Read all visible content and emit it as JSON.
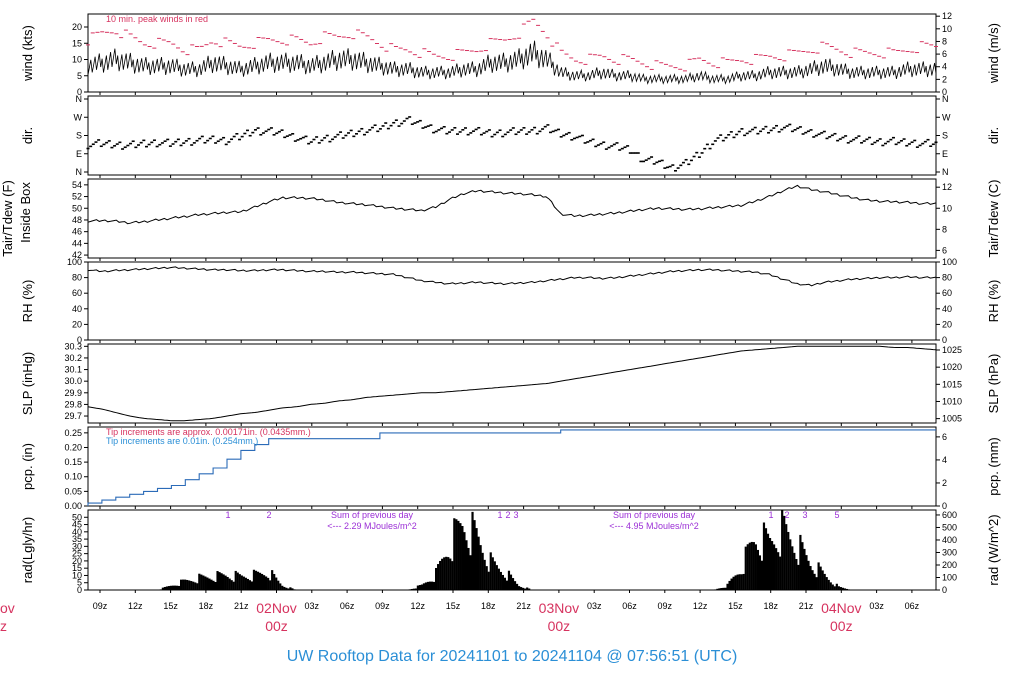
{
  "title": "UW Rooftop Data for 20241101  to  20241104 @ 07:56:51  (UTC)",
  "colors": {
    "peak": "#d6335f",
    "annot_red": "#d6335f",
    "pcp_line": "#2b6bb8",
    "pcp_note_blue": "#2b8fd6",
    "purple": "#9b2fd6",
    "title": "#2b8fd6"
  },
  "time_axis": {
    "hour_ticks": [
      "09z",
      "12z",
      "15z",
      "18z",
      "21z",
      "03z",
      "06z",
      "09z",
      "12z",
      "15z",
      "18z",
      "21z",
      "03z",
      "06z",
      "09z",
      "12z",
      "15z",
      "18z",
      "21z",
      "03z",
      "06z"
    ],
    "day_labels": [
      {
        "date": "02Nov",
        "hour": "00z"
      },
      {
        "date": "03Nov",
        "hour": "00z"
      },
      {
        "date": "04Nov",
        "hour": "00z"
      }
    ],
    "cut_label": {
      "date": "ov",
      "hour": "z"
    }
  },
  "chart_data": [
    {
      "id": "wind",
      "type": "line",
      "ylabel": "wind (kts)",
      "ylabel_right": "wind (m/s)",
      "ylim": [
        0,
        24
      ],
      "yticks": [
        0,
        5,
        10,
        15,
        20
      ],
      "yticks_right": [
        0,
        2,
        4,
        6,
        8,
        10,
        12
      ],
      "annotation": "10 min. peak winds in red",
      "series": [
        {
          "values": [
            8,
            9,
            10,
            9,
            8,
            8,
            8,
            7,
            7,
            9,
            8,
            7,
            8,
            9,
            9,
            9,
            8,
            9,
            10,
            10,
            9,
            8,
            7,
            7,
            6,
            6,
            6,
            7,
            7,
            9,
            9,
            10,
            12,
            10,
            6,
            5,
            5,
            6,
            5,
            5,
            4,
            4,
            4,
            4,
            5,
            4,
            4,
            5,
            5,
            6,
            6,
            6,
            7,
            8,
            7,
            6,
            6,
            6,
            6,
            7,
            7,
            7
          ]
        },
        {
          "values": [
            16,
            18,
            19,
            17,
            15,
            15,
            15,
            13,
            13,
            16,
            15,
            14,
            15,
            16,
            16,
            16,
            15,
            17,
            17,
            18,
            17,
            15,
            13,
            13,
            12,
            11,
            11,
            12,
            13,
            15,
            16,
            18,
            22,
            18,
            12,
            10,
            10,
            11,
            10,
            10,
            9,
            8,
            8,
            8,
            10,
            9,
            9,
            10,
            10,
            11,
            11,
            12,
            13,
            14,
            13,
            12,
            12,
            12,
            12,
            13,
            14,
            14
          ]
        }
      ]
    },
    {
      "id": "dir",
      "type": "scatter",
      "ylabel": "dir.",
      "ylabel_right": "dir.",
      "yticks": [
        "N",
        "E",
        "S",
        "W",
        "N"
      ],
      "series": [
        {
          "values": [
            135,
            140,
            135,
            130,
            140,
            145,
            140,
            150,
            155,
            160,
            155,
            175,
            205,
            200,
            190,
            170,
            150,
            165,
            175,
            190,
            205,
            215,
            240,
            255,
            235,
            210,
            200,
            205,
            200,
            190,
            195,
            200,
            205,
            215,
            190,
            175,
            150,
            135,
            125,
            110,
            60,
            50,
            20,
            40,
            90,
            150,
            175,
            200,
            200,
            210,
            220,
            210,
            195,
            180,
            170,
            160,
            155,
            150,
            150,
            145,
            140,
            140
          ]
        }
      ]
    },
    {
      "id": "temp",
      "type": "line",
      "ylabel": "Tair/Tdew (F)",
      "ylabel2": "Inside Box",
      "ylabel_right": "Tair/Tdew (C)",
      "ylim": [
        41.5,
        55
      ],
      "yticks": [
        42,
        44,
        46,
        48,
        50,
        52,
        54
      ],
      "yticks_right": [
        6,
        8,
        10,
        12
      ],
      "series": [
        {
          "values": [
            47.8,
            47.9,
            47.8,
            47.5,
            47.7,
            48.0,
            48.3,
            48.6,
            48.9,
            49.1,
            49.3,
            49.4,
            50.2,
            51.1,
            51.8,
            51.8,
            51.7,
            51.4,
            51.0,
            50.8,
            50.6,
            50.3,
            50.0,
            49.8,
            49.6,
            50.2,
            51.5,
            52.5,
            53.0,
            52.8,
            52.6,
            52.5,
            52.3,
            52.0,
            49.0,
            48.7,
            48.8,
            49.0,
            49.2,
            49.5,
            49.8,
            50.0,
            49.9,
            49.8,
            49.9,
            50.1,
            50.3,
            50.5,
            51.2,
            52.0,
            53.0,
            53.8,
            53.2,
            52.8,
            52.3,
            51.8,
            51.4,
            51.2,
            51.1,
            51.0,
            50.8,
            50.8
          ]
        }
      ]
    },
    {
      "id": "rh",
      "type": "line",
      "ylabel": "RH (%)",
      "ylabel_right": "RH (%)",
      "ylim": [
        0,
        100
      ],
      "yticks": [
        0,
        20,
        40,
        60,
        80,
        100
      ],
      "yticks_right": [
        0,
        20,
        40,
        60,
        80,
        100
      ],
      "series": [
        {
          "values": [
            90,
            88,
            89,
            90,
            91,
            92,
            93,
            92,
            91,
            90,
            90,
            89,
            89,
            90,
            90,
            89,
            88,
            88,
            87,
            87,
            86,
            85,
            84,
            80,
            76,
            74,
            72,
            73,
            74,
            73,
            72,
            73,
            74,
            76,
            78,
            80,
            80,
            79,
            80,
            82,
            84,
            86,
            88,
            89,
            90,
            90,
            89,
            88,
            87,
            84,
            78,
            72,
            70,
            74,
            76,
            78,
            79,
            80,
            80,
            81,
            80,
            80
          ]
        }
      ]
    },
    {
      "id": "slp",
      "type": "line",
      "ylabel": "SLP (inHg)",
      "ylabel_right": "SLP (hPa)",
      "ylim": [
        29.64,
        30.32
      ],
      "yticks": [
        29.7,
        29.8,
        29.9,
        30.0,
        30.1,
        30.2,
        30.3
      ],
      "yticks_right": [
        1005,
        1010,
        1015,
        1020,
        1025
      ],
      "series": [
        {
          "values": [
            29.78,
            29.76,
            29.73,
            29.7,
            29.68,
            29.67,
            29.66,
            29.66,
            29.67,
            29.68,
            29.7,
            29.72,
            29.73,
            29.75,
            29.77,
            29.78,
            29.8,
            29.81,
            29.83,
            29.84,
            29.86,
            29.87,
            29.88,
            29.89,
            29.9,
            29.9,
            29.91,
            29.92,
            29.93,
            29.94,
            29.95,
            29.96,
            29.97,
            29.98,
            30.0,
            30.02,
            30.04,
            30.06,
            30.08,
            30.1,
            30.12,
            30.14,
            30.16,
            30.18,
            30.2,
            30.22,
            30.24,
            30.26,
            30.27,
            30.28,
            30.29,
            30.3,
            30.3,
            30.3,
            30.3,
            30.3,
            30.3,
            30.3,
            30.29,
            30.29,
            30.28,
            30.27
          ]
        }
      ]
    },
    {
      "id": "pcp",
      "type": "line",
      "ylabel": "pcp. (in)",
      "ylabel_right": "pcp. (mm)",
      "ylim": [
        0,
        0.27
      ],
      "yticks": [
        0.0,
        0.05,
        0.1,
        0.15,
        0.2,
        0.25
      ],
      "yticks_right": [
        0,
        2,
        4,
        6
      ],
      "annotations": [
        "Tip increments are approx. 0.00171in. (0.0435mm.)",
        "Tip increments are 0.01in. (0.254mm.)"
      ],
      "series": [
        {
          "values": [
            0.01,
            0.02,
            0.03,
            0.04,
            0.05,
            0.06,
            0.07,
            0.09,
            0.11,
            0.13,
            0.16,
            0.19,
            0.21,
            0.23,
            0.23,
            0.23,
            0.23,
            0.23,
            0.23,
            0.23,
            0.23,
            0.25,
            0.25,
            0.25,
            0.25,
            0.25,
            0.25,
            0.25,
            0.25,
            0.25,
            0.25,
            0.25,
            0.25,
            0.25,
            0.26,
            0.26,
            0.26,
            0.26,
            0.26,
            0.26,
            0.26,
            0.26,
            0.26,
            0.26,
            0.26,
            0.26,
            0.26,
            0.26,
            0.26,
            0.26,
            0.26,
            0.26,
            0.26,
            0.26,
            0.26,
            0.26,
            0.26,
            0.26,
            0.26,
            0.26,
            0.26,
            0.26
          ]
        }
      ]
    },
    {
      "id": "rad",
      "type": "area",
      "ylabel": "rad(Lgly/hr)",
      "ylabel_right": "rad (W/m^2)",
      "ylim": [
        0,
        55
      ],
      "yticks": [
        0,
        5,
        10,
        15,
        20,
        25,
        30,
        35,
        40,
        45,
        50
      ],
      "yticks_right": [
        0,
        100,
        200,
        300,
        400,
        500,
        600
      ],
      "series": [
        {
          "values": [
            0,
            0,
            0,
            0,
            0,
            0,
            3,
            6,
            8,
            9,
            10,
            9,
            10,
            12,
            3,
            0,
            0,
            0,
            0,
            0,
            0,
            0,
            0,
            0,
            3,
            10,
            30,
            45,
            35,
            18,
            12,
            3,
            0,
            0,
            0,
            0,
            0,
            0,
            0,
            0,
            0,
            0,
            0,
            0,
            0,
            0,
            3,
            15,
            35,
            32,
            40,
            30,
            18,
            10,
            2,
            0,
            0,
            0,
            0,
            0,
            0,
            0
          ]
        }
      ],
      "hour_marks": [
        {
          "day": 0,
          "labels": [
            "1",
            "2"
          ]
        },
        {
          "day": 1,
          "labels": [
            "1",
            "2",
            "3"
          ]
        },
        {
          "day": 2,
          "labels": [
            "1",
            "2",
            "3",
            "5"
          ]
        }
      ],
      "daily_sums": [
        {
          "line1": "Sum of previous day",
          "line2": "<--- 2.29 MJoules/m^2"
        },
        {
          "line1": "Sum of previous day",
          "line2": "<--- 4.95 MJoules/m^2"
        }
      ]
    }
  ]
}
